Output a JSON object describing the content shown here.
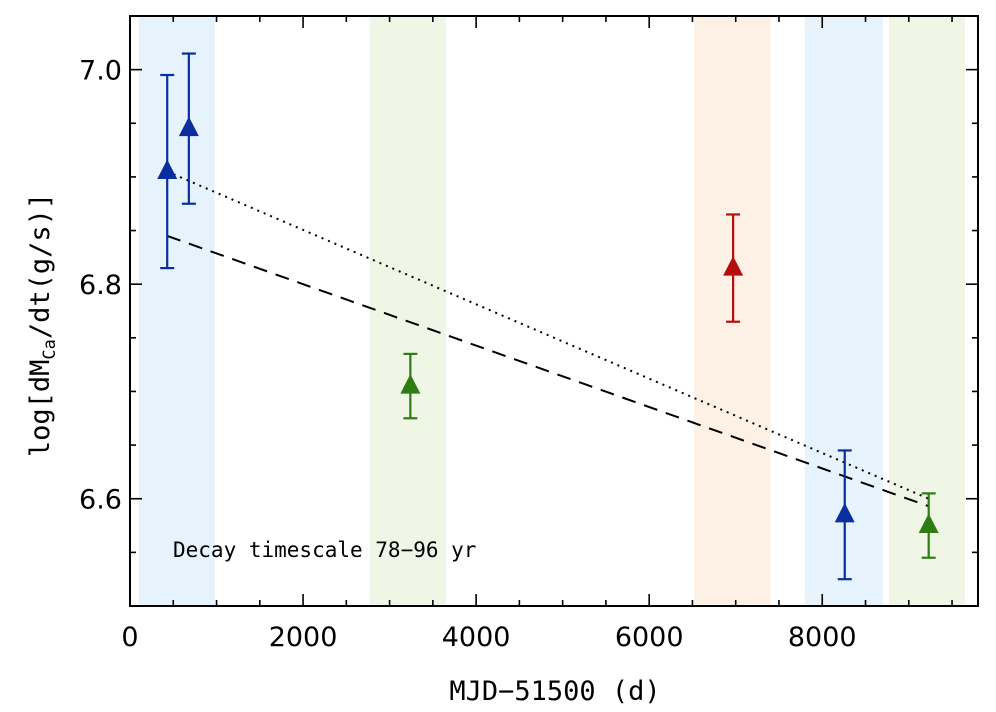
{
  "chart_data": {
    "type": "scatter",
    "title": "",
    "xlabel": "MJD−51500 (d)",
    "ylabel": {
      "pre": "log[dM",
      "sub": "Ca",
      "post": "/dt(g/s)]"
    },
    "xlim": [
      0,
      9800
    ],
    "ylim": [
      6.5,
      7.05
    ],
    "x_ticks": [
      0,
      2000,
      4000,
      6000,
      8000
    ],
    "x_tick_labels": [
      "0",
      "2000",
      "4000",
      "6000",
      "8000"
    ],
    "y_ticks": [
      6.6,
      6.8,
      7.0
    ],
    "y_tick_labels": [
      "6.6",
      "6.8",
      "7.0"
    ],
    "grid": false,
    "annotation": "Decay timescale 78−96 yr",
    "colors": {
      "blue": "#0a2e9e",
      "green": "#2e7d12",
      "red": "#b40e0e"
    },
    "bands": [
      {
        "x0": 100,
        "x1": 980,
        "color": "#e6f3fd"
      },
      {
        "x0": 2770,
        "x1": 3650,
        "color": "#eff6e6"
      },
      {
        "x0": 6520,
        "x1": 7400,
        "color": "#fdf0e4"
      },
      {
        "x0": 7800,
        "x1": 8700,
        "color": "#e6f3fd"
      },
      {
        "x0": 8770,
        "x1": 9650,
        "color": "#eff6e6"
      }
    ],
    "points": [
      {
        "x": 430,
        "y": 6.905,
        "err_low": 0.09,
        "err_high": 0.09,
        "color": "blue"
      },
      {
        "x": 680,
        "y": 6.945,
        "err_low": 0.07,
        "err_high": 0.07,
        "color": "blue"
      },
      {
        "x": 3240,
        "y": 6.705,
        "err_low": 0.03,
        "err_high": 0.03,
        "color": "green"
      },
      {
        "x": 6970,
        "y": 6.815,
        "err_low": 0.05,
        "err_high": 0.05,
        "color": "red"
      },
      {
        "x": 8260,
        "y": 6.585,
        "err_low": 0.06,
        "err_high": 0.06,
        "color": "blue"
      },
      {
        "x": 9230,
        "y": 6.575,
        "err_low": 0.03,
        "err_high": 0.03,
        "color": "green"
      }
    ],
    "fit_lines": [
      {
        "style": "dotted",
        "x": [
          430,
          9230
        ],
        "y": [
          6.905,
          6.6
        ]
      },
      {
        "style": "dashed",
        "x": [
          430,
          9230
        ],
        "y": [
          6.845,
          6.593
        ]
      }
    ]
  }
}
